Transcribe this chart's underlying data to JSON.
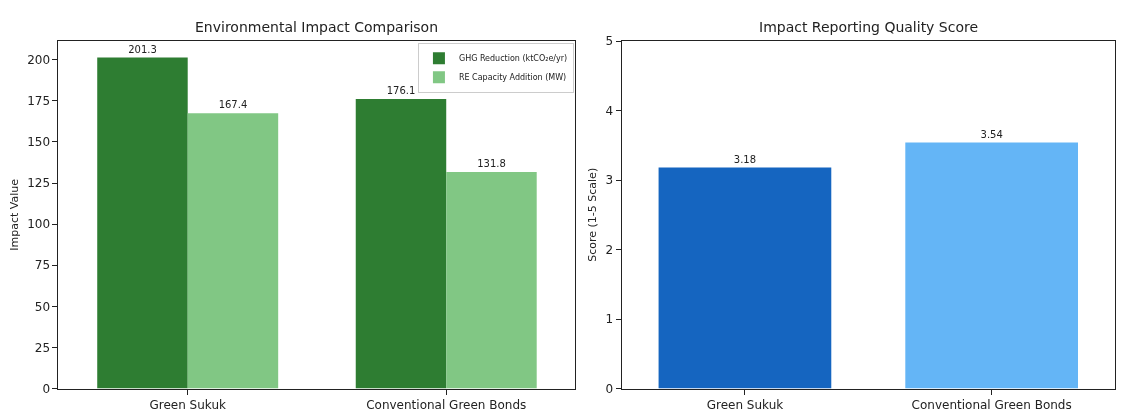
{
  "chart_data": [
    {
      "type": "bar",
      "title": "Environmental Impact Comparison",
      "ylabel": "Impact Value",
      "categories": [
        "Green Sukuk",
        "Conventional Green Bonds"
      ],
      "series": [
        {
          "name": "GHG Reduction (ktCO₂e/yr)",
          "color": "#2e7d32",
          "values": [
            201.3,
            176.1
          ]
        },
        {
          "name": "RE Capacity Addition (MW)",
          "color": "#81c784",
          "values": [
            167.4,
            131.8
          ]
        }
      ],
      "ylim": [
        0,
        211.4
      ],
      "yticks": [
        0,
        25,
        50,
        75,
        100,
        125,
        150,
        175,
        200
      ],
      "data_labels": true,
      "legend": "top right",
      "grid": false
    },
    {
      "type": "bar",
      "title": "Impact Reporting Quality Score",
      "ylabel": "Score (1-5 Scale)",
      "categories": [
        "Green Sukuk",
        "Conventional Green Bonds"
      ],
      "values": [
        3.18,
        3.54
      ],
      "colors": [
        "#1565c0",
        "#64b5f6"
      ],
      "ylim": [
        0,
        5
      ],
      "yticks": [
        0,
        1,
        2,
        3,
        4,
        5
      ],
      "data_labels": true,
      "legend": false,
      "grid": false
    }
  ]
}
